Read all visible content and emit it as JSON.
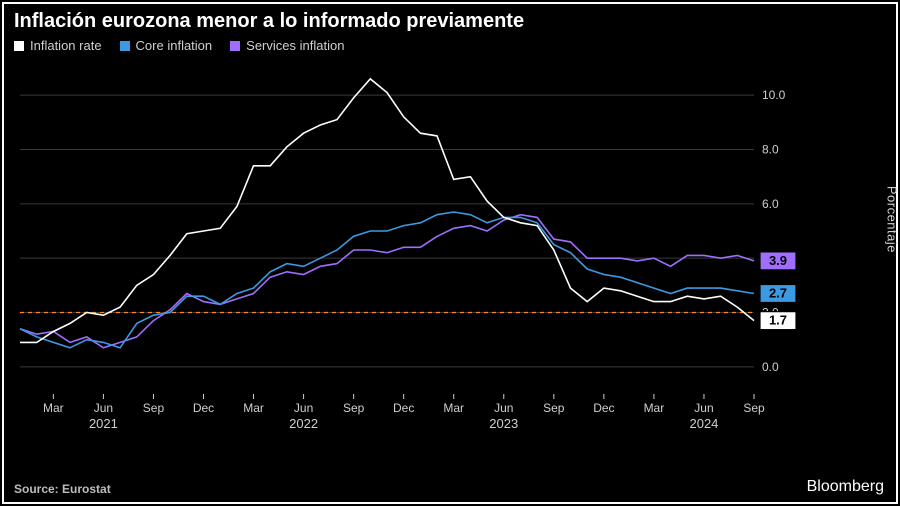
{
  "title": "Inflación eurozona menor a lo informado previamente",
  "legend": [
    {
      "label": "Inflation rate",
      "color": "#ffffff"
    },
    {
      "label": "Core inflation",
      "color": "#3b9ae1"
    },
    {
      "label": "Services inflation",
      "color": "#a06eff"
    }
  ],
  "axis": {
    "ylabel": "Porcentaje",
    "ylim": [
      -1.0,
      11.0
    ],
    "yticks": [
      0.0,
      2.0,
      4.0,
      6.0,
      8.0,
      10.0
    ],
    "grid_color": "#3a3a3a",
    "ref_line": {
      "y": 2.0,
      "color": "#ff8c1a",
      "dash": "4,4"
    },
    "xticks_months": [
      "Mar",
      "Jun",
      "Sep",
      "Dec",
      "Mar",
      "Jun",
      "Sep",
      "Dec",
      "Mar",
      "Jun",
      "Sep",
      "Dec",
      "Mar",
      "Jun",
      "Sep"
    ],
    "xticks_years": [
      {
        "label": "2021",
        "at": 5
      },
      {
        "label": "2022",
        "at": 17
      },
      {
        "label": "2023",
        "at": 29
      },
      {
        "label": "2024",
        "at": 41
      }
    ]
  },
  "series": {
    "inflation_rate": {
      "color": "#ffffff",
      "end_label": "1.7",
      "y": [
        0.9,
        0.9,
        1.3,
        1.6,
        2.0,
        1.9,
        2.2,
        3.0,
        3.4,
        4.1,
        4.9,
        5.0,
        5.1,
        5.9,
        7.4,
        7.4,
        8.1,
        8.6,
        8.9,
        9.1,
        9.9,
        10.6,
        10.1,
        9.2,
        8.6,
        8.5,
        6.9,
        7.0,
        6.1,
        5.5,
        5.3,
        5.2,
        4.3,
        2.9,
        2.4,
        2.9,
        2.8,
        2.6,
        2.4,
        2.4,
        2.6,
        2.5,
        2.6,
        2.2,
        1.7
      ]
    },
    "core_inflation": {
      "color": "#3b9ae1",
      "end_label": "2.7",
      "y": [
        1.4,
        1.1,
        0.9,
        0.7,
        1.0,
        0.9,
        0.7,
        1.6,
        1.9,
        2.0,
        2.6,
        2.6,
        2.3,
        2.7,
        2.9,
        3.5,
        3.8,
        3.7,
        4.0,
        4.3,
        4.8,
        5.0,
        5.0,
        5.2,
        5.3,
        5.6,
        5.7,
        5.6,
        5.3,
        5.5,
        5.5,
        5.3,
        4.5,
        4.2,
        3.6,
        3.4,
        3.3,
        3.1,
        2.9,
        2.7,
        2.9,
        2.9,
        2.9,
        2.8,
        2.7
      ]
    },
    "services_inflation": {
      "color": "#a06eff",
      "end_label": "3.9",
      "y": [
        1.4,
        1.2,
        1.3,
        0.9,
        1.1,
        0.7,
        0.9,
        1.1,
        1.7,
        2.1,
        2.7,
        2.4,
        2.3,
        2.5,
        2.7,
        3.3,
        3.5,
        3.4,
        3.7,
        3.8,
        4.3,
        4.3,
        4.2,
        4.4,
        4.4,
        4.8,
        5.1,
        5.2,
        5.0,
        5.4,
        5.6,
        5.5,
        4.7,
        4.6,
        4.0,
        4.0,
        4.0,
        3.9,
        4.0,
        3.7,
        4.1,
        4.1,
        4.0,
        4.1,
        3.9
      ]
    }
  },
  "footer": {
    "source": "Source: Eurostat",
    "brand": "Bloomberg"
  },
  "style": {
    "background": "#000000",
    "line_width": 1.6,
    "label_text_color": "#000000"
  }
}
